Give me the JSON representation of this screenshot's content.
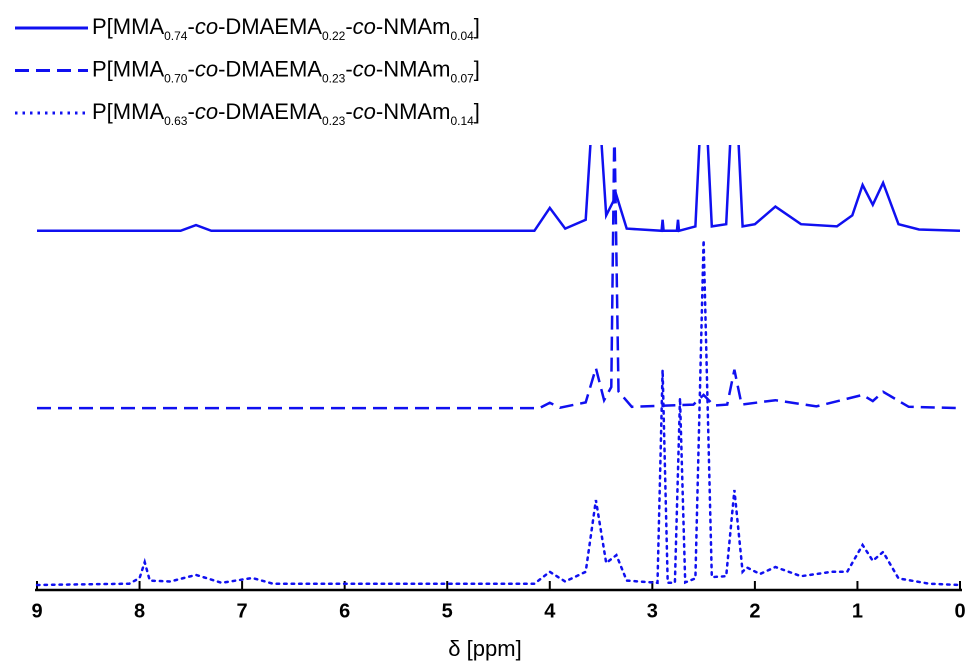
{
  "chart_data": {
    "type": "line",
    "xlabel": "δ [ppm]",
    "xlim": [
      9,
      0
    ],
    "xticks": [
      9,
      8,
      7,
      6,
      5,
      4,
      3,
      2,
      1,
      0
    ],
    "ylim": [
      0,
      100
    ],
    "legend": "top-left",
    "series": [
      {
        "name": "P[MMA0.74-co-DMAEMA0.22-co-NMAm0.04]",
        "color": "#1010f0",
        "style": "solid",
        "x": [
          9,
          7.6,
          7.45,
          7.3,
          4.15,
          4.0,
          3.85,
          3.65,
          3.55,
          3.45,
          3.35,
          3.25,
          2.91,
          2.9,
          2.89,
          2.76,
          2.75,
          2.74,
          2.58,
          2.5,
          2.42,
          2.28,
          2.2,
          2.12,
          2.0,
          1.8,
          1.55,
          1.2,
          1.05,
          0.95,
          0.85,
          0.75,
          0.6,
          0.4,
          0
        ],
        "values": [
          80.5,
          80.5,
          81.8,
          80.5,
          80.5,
          85.7,
          81,
          83,
          120,
          84,
          88.6,
          81,
          80.5,
          83,
          80.5,
          80.5,
          83,
          80.5,
          81.5,
          120,
          81.5,
          82,
          120,
          81.5,
          82,
          86,
          82,
          81.5,
          84,
          90.9,
          86.4,
          91.4,
          82,
          80.8,
          80.5
        ]
      },
      {
        "name": "P[MMA0.70-co-DMAEMA0.23-co-NMAm0.07]",
        "color": "#1010f0",
        "style": "dashed",
        "x": [
          9,
          4.1,
          4.0,
          3.9,
          3.65,
          3.55,
          3.47,
          3.4,
          3.37,
          3.33,
          3.2,
          2.6,
          2.5,
          2.4,
          2.27,
          2.2,
          2.13,
          1.8,
          1.4,
          0.95,
          0.85,
          0.75,
          0.5,
          0
        ],
        "values": [
          40.2,
          40.2,
          41.4,
          40.3,
          41.5,
          49.3,
          42,
          45,
          105,
          44,
          40.5,
          41,
          43.2,
          40.8,
          41,
          48.9,
          41,
          42,
          40.6,
          43.2,
          41.8,
          43.9,
          40.5,
          40.2
        ]
      },
      {
        "name": "P[MMA0.63-co-DMAEMA0.23-co-NMAm0.14]",
        "color": "#1010f0",
        "style": "dotted",
        "x": [
          9,
          8.1,
          8.0,
          7.95,
          7.9,
          7.7,
          7.45,
          7.2,
          6.9,
          6.7,
          4.15,
          4.0,
          3.85,
          3.65,
          3.55,
          3.45,
          3.35,
          3.25,
          2.95,
          2.9,
          2.85,
          2.78,
          2.73,
          2.68,
          2.58,
          2.5,
          2.42,
          2.28,
          2.2,
          2.12,
          2.08,
          1.95,
          1.8,
          1.55,
          1.25,
          1.1,
          0.95,
          0.85,
          0.75,
          0.6,
          0.3,
          0
        ],
        "values": [
          0,
          0.3,
          1.6,
          5.2,
          1,
          0.8,
          2.3,
          0.5,
          1.6,
          0.3,
          0.3,
          3,
          0.8,
          3,
          19.3,
          5,
          6.8,
          1,
          0.5,
          48.9,
          0.5,
          0.5,
          42.5,
          0.6,
          1.5,
          78.4,
          1.8,
          2,
          21.6,
          3,
          4,
          2.5,
          4.1,
          2,
          3,
          3,
          9.1,
          5.5,
          7.5,
          1.5,
          0.3,
          0
        ]
      }
    ]
  }
}
